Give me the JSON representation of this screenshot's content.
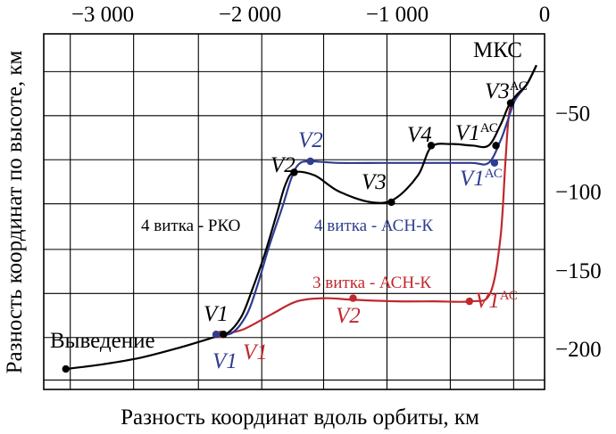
{
  "chart_data": {
    "type": "line",
    "title": "",
    "xlabel": "Разность координат вдоль орбиты, км",
    "ylabel": "Разность координат по высоте, км",
    "xlim": [
      -3400,
      0
    ],
    "ylim": [
      -226,
      0
    ],
    "x_ticks": [
      -3000,
      -2000,
      -1000,
      0
    ],
    "x_tick_labels": [
      "−3 000",
      "−2 000",
      "−1 000",
      "0"
    ],
    "y_ticks": [
      -50,
      -100,
      -150,
      -200
    ],
    "y_tick_labels": [
      "−50",
      "−100",
      "−150",
      "−200"
    ],
    "x_grid": [
      -3220,
      -2790,
      -2350,
      -1920,
      -1500,
      -1070,
      -640,
      -210
    ],
    "y_grid": [
      -24,
      -52,
      -80,
      -108,
      -137,
      -165,
      -193,
      -220
    ],
    "grid": true,
    "series": [
      {
        "name": "4 витка - РКО",
        "color": "#000000",
        "curve": [
          [
            -3250,
            -213
          ],
          [
            -3000,
            -210
          ],
          [
            -2750,
            -206
          ],
          [
            -2500,
            -200
          ],
          [
            -2250,
            -193
          ],
          [
            -2150,
            -190
          ],
          [
            -2060,
            -180
          ],
          [
            -1990,
            -164
          ],
          [
            -1900,
            -140
          ],
          [
            -1820,
            -115
          ],
          [
            -1760,
            -96
          ],
          [
            -1700,
            -88
          ],
          [
            -1560,
            -90
          ],
          [
            -1400,
            -100
          ],
          [
            -1180,
            -107
          ],
          [
            -1020,
            -105
          ],
          [
            -860,
            -90
          ],
          [
            -770,
            -72
          ],
          [
            -640,
            -70
          ],
          [
            -490,
            -71
          ],
          [
            -380,
            -71
          ],
          [
            -300,
            -58
          ],
          [
            -240,
            -45
          ],
          [
            -180,
            -38
          ],
          [
            -120,
            -32
          ],
          [
            -55,
            -20
          ]
        ],
        "points": [
          [
            -3250,
            -213
          ],
          [
            -2180,
            -191
          ],
          [
            -1700,
            -88
          ],
          [
            -1040,
            -107
          ],
          [
            -770,
            -71
          ],
          [
            -330,
            -71
          ],
          [
            -230,
            -44
          ]
        ]
      },
      {
        "name": "4 витка - АСН-К",
        "color": "#2e3d8f",
        "curve": [
          [
            -2230,
            -191
          ],
          [
            -2120,
            -190
          ],
          [
            -2020,
            -178
          ],
          [
            -1950,
            -160
          ],
          [
            -1870,
            -135
          ],
          [
            -1780,
            -110
          ],
          [
            -1720,
            -92
          ],
          [
            -1670,
            -83
          ],
          [
            -1600,
            -81
          ],
          [
            -1400,
            -82
          ],
          [
            -1100,
            -82
          ],
          [
            -800,
            -82
          ],
          [
            -500,
            -82
          ],
          [
            -380,
            -82
          ],
          [
            -300,
            -68
          ],
          [
            -250,
            -55
          ],
          [
            -200,
            -42
          ],
          [
            -120,
            -32
          ],
          [
            -55,
            -20
          ]
        ],
        "points": [
          [
            -2230,
            -191
          ],
          [
            -1590,
            -81
          ],
          [
            -340,
            -82
          ],
          [
            -230,
            -44
          ]
        ]
      },
      {
        "name": "3 витка - АСН-К",
        "color": "#c0282d",
        "curve": [
          [
            -2200,
            -191
          ],
          [
            -2050,
            -188
          ],
          [
            -1850,
            -178
          ],
          [
            -1680,
            -170
          ],
          [
            -1490,
            -168
          ],
          [
            -1300,
            -169
          ],
          [
            -1000,
            -170
          ],
          [
            -750,
            -170
          ],
          [
            -500,
            -170
          ],
          [
            -370,
            -165
          ],
          [
            -300,
            -130
          ],
          [
            -265,
            -80
          ],
          [
            -240,
            -50
          ],
          [
            -200,
            -40
          ],
          [
            -120,
            -32
          ],
          [
            -55,
            -20
          ]
        ],
        "points": [
          [
            -2200,
            -191
          ],
          [
            -1300,
            -168
          ],
          [
            -510,
            -170
          ],
          [
            -230,
            -44
          ]
        ]
      }
    ],
    "annotations": [
      {
        "text": "МКС",
        "color": "#000000"
      },
      {
        "text": "V3",
        "sup": "АС",
        "color": "#000000"
      },
      {
        "text": "V1",
        "sup": "АС",
        "color": "#000000"
      },
      {
        "text": "V4",
        "sup": "",
        "color": "#000000"
      },
      {
        "text": "V2",
        "sup": "",
        "color": "#2e3d8f"
      },
      {
        "text": "V1",
        "sup": "АС",
        "color": "#2e3d8f"
      },
      {
        "text": "V2",
        "sup": "",
        "color": "#000000"
      },
      {
        "text": "V3",
        "sup": "",
        "color": "#000000"
      },
      {
        "text": "4 витка - РКО",
        "sup": "",
        "color": "#000000"
      },
      {
        "text": "4 витка - АСН-К",
        "sup": "",
        "color": "#2e3d8f"
      },
      {
        "text": "3 витка - АСН-К",
        "sup": "",
        "color": "#c0282d"
      },
      {
        "text": "V2",
        "sup": "",
        "color": "#c0282d"
      },
      {
        "text": "V1",
        "sup": "АС",
        "color": "#c0282d"
      },
      {
        "text": "V1",
        "sup": "",
        "color": "#000000"
      },
      {
        "text": "Выведение",
        "sup": "",
        "color": "#000000"
      },
      {
        "text": "V1",
        "sup": "",
        "color": "#2e3d8f"
      },
      {
        "text": "V1",
        "sup": "",
        "color": "#c0282d"
      }
    ]
  }
}
